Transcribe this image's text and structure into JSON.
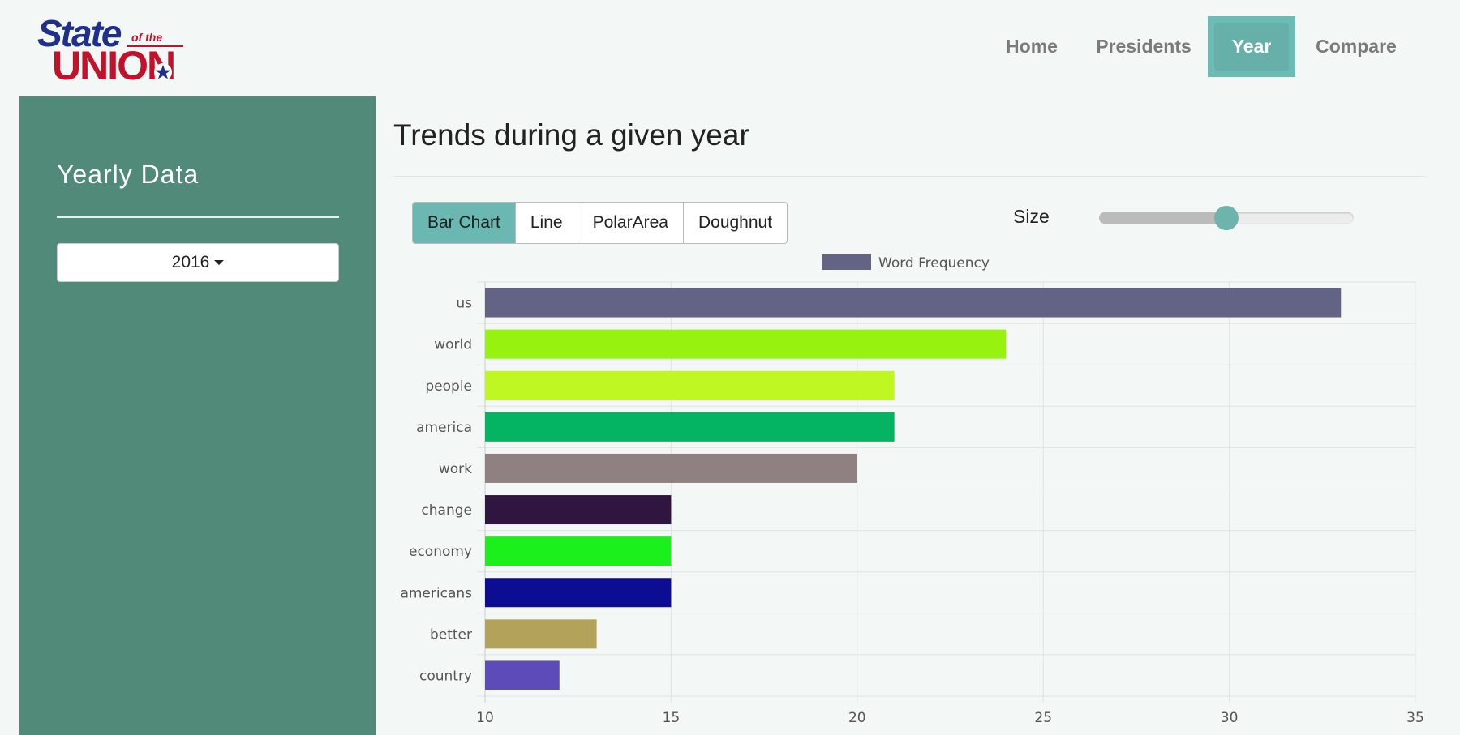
{
  "logo": {
    "line1": "State",
    "small": "of the",
    "line2": "UNION"
  },
  "nav": {
    "items": [
      {
        "label": "Home"
      },
      {
        "label": "Presidents"
      },
      {
        "label": "Year"
      },
      {
        "label": "Compare"
      }
    ],
    "active": "Year"
  },
  "sidebar": {
    "title": "Yearly Data",
    "year_selected": "2016"
  },
  "main": {
    "title": "Trends during a given year",
    "chart_types": [
      "Bar Chart",
      "Line",
      "PolarArea",
      "Doughnut"
    ],
    "active_chart_type": "Bar Chart",
    "size_label": "Size",
    "size_value_fraction": 0.5
  },
  "colors": {
    "accent": "#6bb8b3",
    "sidebar": "#528a79"
  },
  "chart_data": {
    "type": "bar",
    "orientation": "horizontal",
    "legend": "Word Frequency",
    "legend_color": "#636385",
    "categories": [
      "us",
      "world",
      "people",
      "america",
      "work",
      "change",
      "economy",
      "americans",
      "better",
      "country"
    ],
    "values": [
      33,
      24,
      21,
      21,
      20,
      15,
      15,
      15,
      13,
      12
    ],
    "colors": [
      "#636385",
      "#98f20f",
      "#bef722",
      "#04b462",
      "#8f8181",
      "#301540",
      "#1cf01c",
      "#0d0d93",
      "#b3a25a",
      "#5c4bb8"
    ],
    "xlim": [
      10,
      35
    ],
    "xticks": [
      "10",
      "15",
      "20",
      "25",
      "30",
      "35"
    ]
  }
}
